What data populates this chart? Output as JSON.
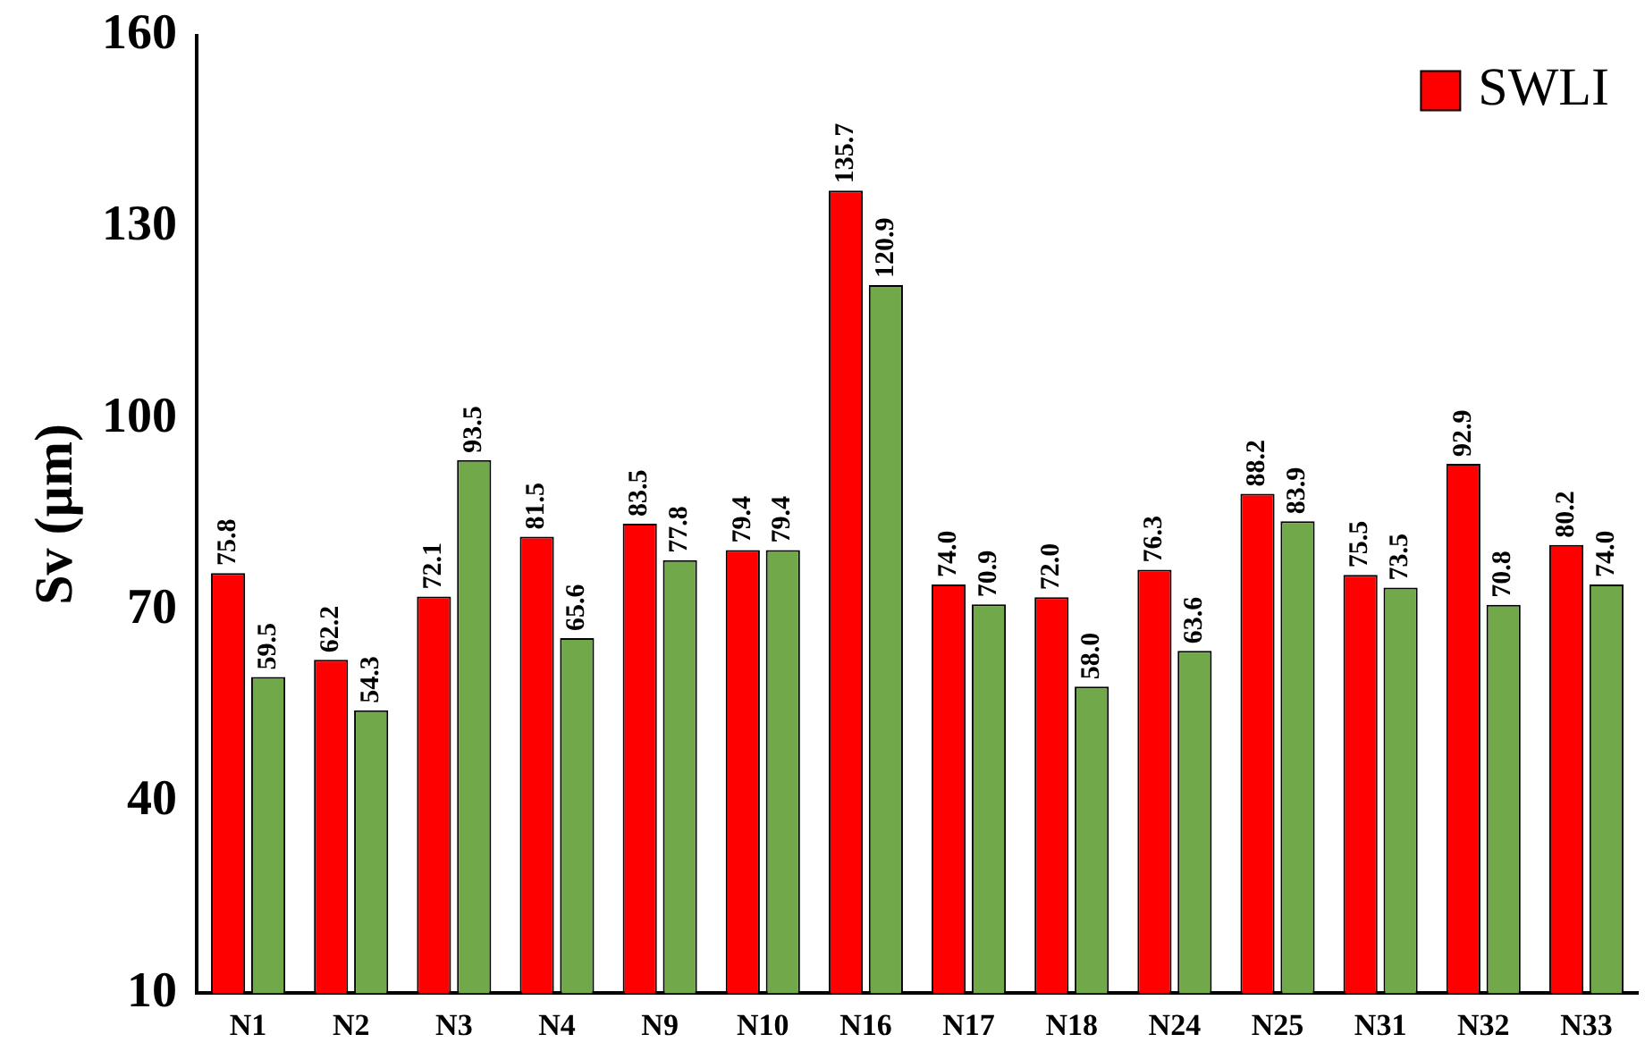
{
  "chart_data": {
    "type": "bar",
    "ylabel": "Sv (µm)",
    "categories": [
      "N1",
      "N2",
      "N3",
      "N4",
      "N9",
      "N10",
      "N16",
      "N17",
      "N18",
      "N24",
      "N25",
      "N31",
      "N32",
      "N33"
    ],
    "series": [
      {
        "name": "SWLI",
        "color": "#ff0000",
        "values": [
          75.8,
          62.2,
          72.1,
          81.5,
          83.5,
          79.4,
          135.7,
          74.0,
          72.0,
          76.3,
          88.2,
          75.5,
          92.9,
          80.2
        ],
        "value_labels": [
          "75.8",
          "62.2",
          "72.1",
          "81.5",
          "83.5",
          "79.4",
          "135.7",
          "74.0",
          "72.0",
          "76.3",
          "88.2",
          "75.5",
          "92.9",
          "80.2"
        ]
      },
      {
        "color": "#70a84a",
        "values": [
          59.5,
          54.3,
          93.5,
          65.6,
          77.8,
          79.4,
          120.9,
          70.9,
          58.0,
          63.6,
          83.9,
          73.5,
          70.8,
          74.0
        ],
        "value_labels": [
          "59.5",
          "54.3",
          "93.5",
          "65.6",
          "77.8",
          "79.4",
          "120.9",
          "70.9",
          "58.0",
          "63.6",
          "83.9",
          "73.5",
          "70.8",
          "74.0"
        ]
      }
    ],
    "ylim": [
      10,
      160
    ],
    "yticks": [
      10,
      40,
      70,
      100,
      130,
      160
    ],
    "grid": false,
    "legend": "top right"
  }
}
